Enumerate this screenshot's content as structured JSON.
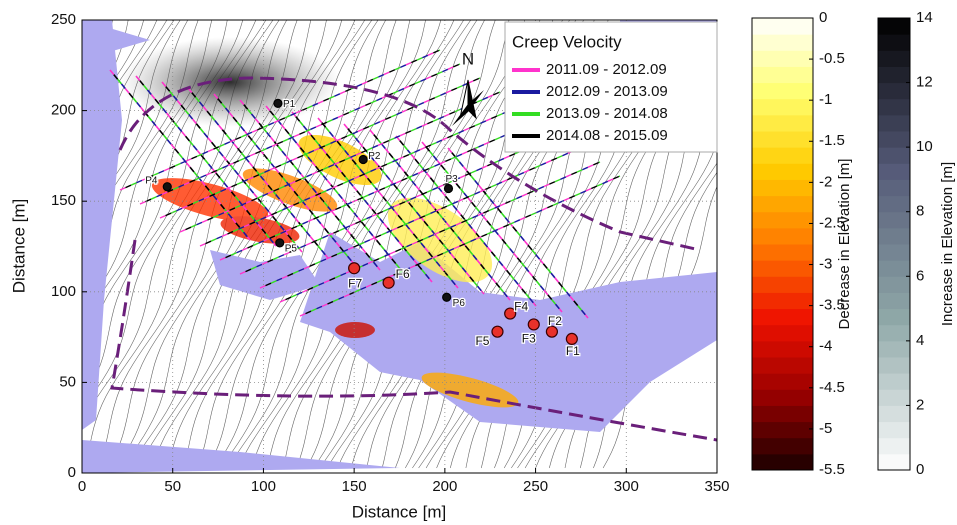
{
  "chart_data": {
    "type": "scatter",
    "xlabel": "Distance [m]",
    "ylabel": "Distance [m]",
    "xlim": [
      0,
      350
    ],
    "ylim": [
      0,
      250
    ],
    "xticks": [
      0,
      50,
      100,
      150,
      200,
      250,
      300,
      350
    ],
    "yticks": [
      0,
      50,
      100,
      150,
      200,
      250
    ],
    "grid": true,
    "north_label": "N",
    "points": [
      {
        "label": "P1",
        "x": 108,
        "y": 204,
        "color": "#111111"
      },
      {
        "label": "P2",
        "x": 155,
        "y": 173,
        "color": "#111111"
      },
      {
        "label": "P3",
        "x": 202,
        "y": 157,
        "color": "#111111"
      },
      {
        "label": "P4",
        "x": 47,
        "y": 158,
        "color": "#111111"
      },
      {
        "label": "P5",
        "x": 109,
        "y": 127,
        "color": "#111111"
      },
      {
        "label": "P6",
        "x": 201,
        "y": 97,
        "color": "#111111"
      },
      {
        "label": "F1",
        "x": 270,
        "y": 74,
        "color": "#e8312a"
      },
      {
        "label": "F2",
        "x": 259,
        "y": 78,
        "color": "#e8312a"
      },
      {
        "label": "F3",
        "x": 249,
        "y": 82,
        "color": "#e8312a"
      },
      {
        "label": "F4",
        "x": 236,
        "y": 88,
        "color": "#e8312a"
      },
      {
        "label": "F5",
        "x": 229,
        "y": 78,
        "color": "#e8312a"
      },
      {
        "label": "F6",
        "x": 169,
        "y": 105,
        "color": "#e8312a"
      },
      {
        "label": "F7",
        "x": 150,
        "y": 113,
        "color": "#e8312a"
      }
    ],
    "legend": {
      "title": "Creep Velocity",
      "position": "upper right",
      "entries": [
        {
          "name": "2011.09 - 2012.09",
          "color": "#ff33cc"
        },
        {
          "name": "2012.09 - 2013.09",
          "color": "#1a1aa0"
        },
        {
          "name": "2013.09 - 2014.08",
          "color": "#33dd22"
        },
        {
          "name": "2014.08 - 2015.09",
          "color": "#000000"
        }
      ]
    },
    "colorbars": [
      {
        "label": "Decrease in Elevation [m]",
        "lim": [
          -5.5,
          0
        ],
        "ticks": [
          0,
          -0.5,
          -1,
          -1.5,
          -2,
          -2.5,
          -3,
          -3.5,
          -4,
          -4.5,
          -5,
          -5.5
        ],
        "colors": [
          "#ffffff",
          "#ffff70",
          "#ffcc00",
          "#ff7a00",
          "#ee1100",
          "#990000",
          "#1a0000"
        ]
      },
      {
        "label": "Increase in Elevation [m]",
        "lim": [
          0,
          14
        ],
        "ticks": [
          0,
          2,
          4,
          6,
          8,
          10,
          12,
          14
        ],
        "colors": [
          "#ffffff",
          "#8fa8a8",
          "#555a78",
          "#000000"
        ]
      }
    ]
  }
}
